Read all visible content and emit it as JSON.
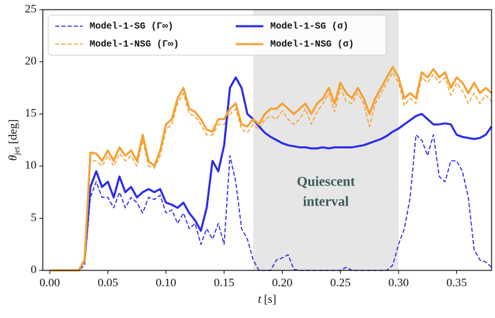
{
  "chart_data": {
    "type": "line",
    "xlabel": {
      "symbol": "t",
      "unit": "[s]"
    },
    "ylabel": {
      "symbol": "θ",
      "subscript": "jet",
      "unit": "[deg]"
    },
    "xlim": [
      -0.006,
      0.38
    ],
    "ylim": [
      0,
      25
    ],
    "xticks": [
      {
        "value": 0,
        "label": "0.00"
      },
      {
        "value": 0.05,
        "label": "0.05"
      },
      {
        "value": 0.1,
        "label": "0.10"
      },
      {
        "value": 0.15,
        "label": "0.15"
      },
      {
        "value": 0.2,
        "label": "0.20"
      },
      {
        "value": 0.25,
        "label": "0.25"
      },
      {
        "value": 0.3,
        "label": "0.30"
      },
      {
        "value": 0.35,
        "label": "0.35"
      }
    ],
    "yticks": [
      0,
      5,
      10,
      15,
      20,
      25
    ],
    "legend": "upper left",
    "shaded_region": {
      "x": [
        0.175,
        0.3
      ],
      "color": "#e6e6e6",
      "label": [
        "Quiescent",
        "interval"
      ]
    },
    "x": [
      0,
      0.005,
      0.01,
      0.015,
      0.02,
      0.025,
      0.03,
      0.035,
      0.04,
      0.045,
      0.05,
      0.055,
      0.06,
      0.065,
      0.07,
      0.075,
      0.08,
      0.085,
      0.09,
      0.095,
      0.1,
      0.105,
      0.11,
      0.115,
      0.12,
      0.125,
      0.13,
      0.135,
      0.14,
      0.145,
      0.15,
      0.155,
      0.16,
      0.165,
      0.17,
      0.175,
      0.18,
      0.185,
      0.19,
      0.195,
      0.2,
      0.205,
      0.21,
      0.215,
      0.22,
      0.225,
      0.23,
      0.235,
      0.24,
      0.245,
      0.25,
      0.255,
      0.26,
      0.265,
      0.27,
      0.275,
      0.28,
      0.285,
      0.29,
      0.295,
      0.3,
      0.305,
      0.31,
      0.315,
      0.32,
      0.325,
      0.33,
      0.335,
      0.34,
      0.345,
      0.35,
      0.355,
      0.36,
      0.365,
      0.37,
      0.375,
      0.38
    ],
    "series": [
      {
        "name": "Model-1-SG (Γ∞)",
        "color": "#2b2be8",
        "dash": true,
        "values": [
          0,
          0,
          0,
          0,
          0,
          0,
          0.5,
          7,
          8.5,
          7,
          7,
          6,
          7.5,
          6,
          7,
          6.5,
          5.5,
          7,
          6.8,
          7.2,
          5.5,
          5.8,
          4.5,
          5.5,
          4,
          4.5,
          2.5,
          4,
          3,
          4.5,
          2.5,
          11,
          8.5,
          4,
          3,
          1,
          0,
          0,
          0,
          1,
          1.2,
          1.5,
          0.1,
          0,
          0,
          0,
          0,
          0,
          0,
          0,
          0,
          0.3,
          0,
          0,
          0,
          0,
          0,
          0,
          0,
          0.5,
          2.5,
          4,
          7,
          13,
          12.5,
          11,
          13,
          9,
          8.5,
          10.5,
          10.5,
          9.5,
          7,
          2,
          1,
          0.8,
          0.3
        ]
      },
      {
        "name": "Model-1-NSG (Γ∞)",
        "color": "#f5a033",
        "dash": true,
        "values": [
          0,
          0,
          0,
          0,
          0,
          0,
          0.8,
          10.5,
          10.5,
          10,
          11,
          10,
          11.2,
          10.5,
          11,
          10,
          12.5,
          10,
          9.8,
          11,
          13.5,
          14,
          16,
          17,
          15,
          14.8,
          14,
          13,
          13,
          14,
          14,
          15,
          15.5,
          13.5,
          13.2,
          14,
          13.5,
          14.5,
          14.8,
          14.5,
          15.3,
          14.5,
          14,
          14.5,
          15.5,
          14,
          15.2,
          16,
          17,
          15.2,
          17.5,
          16.2,
          16,
          17,
          16,
          13.8,
          16,
          17,
          18,
          19,
          18,
          15.8,
          16.5,
          16,
          18.5,
          18,
          18.8,
          18,
          18.5,
          16.8,
          18,
          17.2,
          16,
          17,
          16,
          16.8,
          16.2
        ]
      },
      {
        "name": "Model-1-SG (σ)",
        "color": "#2b2be8",
        "dash": false,
        "values": [
          0,
          0,
          0,
          0,
          0,
          0,
          1,
          8,
          9.5,
          8,
          8.5,
          7,
          9,
          7.5,
          8,
          7,
          7.5,
          7.8,
          7.5,
          7.8,
          6.5,
          6.3,
          6,
          6.5,
          5.5,
          4.8,
          3.8,
          6,
          10.5,
          9.5,
          12,
          17.5,
          18.5,
          17.5,
          15,
          14.5,
          13.8,
          13.2,
          12.8,
          12.5,
          12.2,
          12,
          11.9,
          11.8,
          11.8,
          11.7,
          11.7,
          11.8,
          11.7,
          11.8,
          11.8,
          11.8,
          11.8,
          11.9,
          12,
          12.2,
          12.4,
          12.6,
          12.9,
          13.3,
          13.6,
          14,
          14.4,
          14.8,
          15,
          14.5,
          14,
          14,
          14.1,
          14,
          13,
          12.8,
          12.7,
          12.6,
          12.7,
          13,
          13.8
        ]
      },
      {
        "name": "Model-1-NSG (σ)",
        "color": "#f5a033",
        "dash": false,
        "values": [
          0,
          0,
          0,
          0,
          0,
          0,
          1,
          11.3,
          11.2,
          10.5,
          11.5,
          10.5,
          11.8,
          11,
          11.5,
          10.5,
          13,
          10.5,
          10,
          11.5,
          14,
          14.5,
          16.5,
          17.5,
          15.5,
          15.2,
          14.5,
          13.5,
          13.3,
          14.5,
          14.5,
          15.5,
          16,
          14,
          13.8,
          14.5,
          14,
          15,
          15.5,
          15.5,
          16,
          15.5,
          15,
          15.5,
          16,
          15,
          16,
          16.5,
          17.5,
          16,
          18,
          17,
          16.5,
          17.5,
          16.5,
          15,
          16.5,
          17.5,
          18.5,
          19.5,
          18.5,
          16.5,
          17,
          16.5,
          19,
          18.5,
          19.3,
          18.5,
          19,
          17.5,
          18.5,
          18,
          17,
          18,
          17,
          17.5,
          17
        ]
      }
    ]
  }
}
